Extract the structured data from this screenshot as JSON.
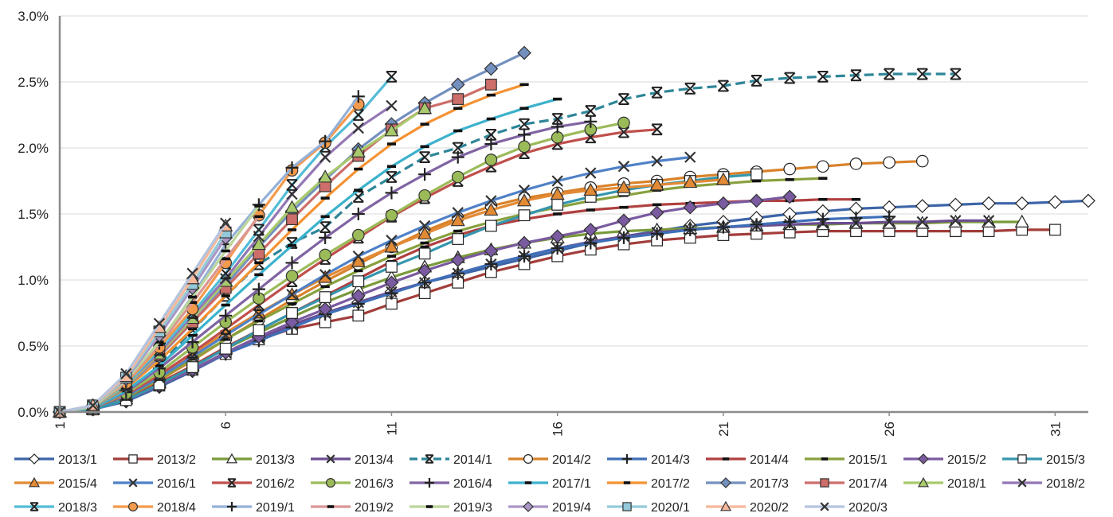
{
  "chart_data": {
    "type": "line",
    "title": "",
    "xlabel": "",
    "ylabel": "",
    "xlim": [
      1,
      32
    ],
    "ylim": [
      0,
      0.03
    ],
    "x_ticks": [
      1,
      6,
      11,
      16,
      21,
      26,
      31
    ],
    "y_ticks": [
      0,
      0.005,
      0.01,
      0.015,
      0.02,
      0.025,
      0.03
    ],
    "x_tick_labels": [
      "1",
      "6",
      "11",
      "16",
      "21",
      "26",
      "31"
    ],
    "y_tick_labels": [
      "0.0%",
      "0.5%",
      "1.0%",
      "1.5%",
      "2.0%",
      "2.5%",
      "3.0%"
    ],
    "legend_position": "bottom",
    "grid": "horizontal",
    "series": [
      {
        "name": "2013/1",
        "color": "#3d65a8",
        "marker": "diamond-open",
        "dash": false,
        "values": [
          0,
          0.0002,
          0.0008,
          0.0019,
          0.0031,
          0.0044,
          0.0055,
          0.0065,
          0.0074,
          0.0083,
          0.0091,
          0.0098,
          0.0104,
          0.011,
          0.0116,
          0.0122,
          0.0128,
          0.0133,
          0.0137,
          0.0141,
          0.0144,
          0.0147,
          0.015,
          0.0152,
          0.0154,
          0.0155,
          0.0156,
          0.0157,
          0.0158,
          0.0158,
          0.0159,
          0.016
        ]
      },
      {
        "name": "2013/2",
        "color": "#a23d3a",
        "marker": "square-open",
        "dash": false,
        "values": [
          0,
          0.0002,
          0.001,
          0.002,
          0.0032,
          0.0044,
          0.0055,
          0.0063,
          0.0068,
          0.0073,
          0.0082,
          0.009,
          0.0098,
          0.0106,
          0.0112,
          0.0118,
          0.0123,
          0.0127,
          0.013,
          0.0132,
          0.0134,
          0.0135,
          0.0136,
          0.0137,
          0.0137,
          0.0137,
          0.0137,
          0.0137,
          0.0137,
          0.0138,
          0.0138
        ]
      },
      {
        "name": "2013/3",
        "color": "#7a9a3b",
        "marker": "triangle-open",
        "dash": false,
        "values": [
          0,
          0.0002,
          0.001,
          0.0022,
          0.0035,
          0.0048,
          0.006,
          0.0072,
          0.0083,
          0.0093,
          0.0102,
          0.011,
          0.0117,
          0.0123,
          0.0128,
          0.0132,
          0.0135,
          0.0137,
          0.0138,
          0.0139,
          0.014,
          0.0141,
          0.0142,
          0.0142,
          0.0143,
          0.0143,
          0.0143,
          0.0144,
          0.0144,
          0.0144
        ]
      },
      {
        "name": "2013/4",
        "color": "#6b4d92",
        "marker": "x",
        "dash": false,
        "values": [
          0,
          0.0002,
          0.0009,
          0.002,
          0.0032,
          0.0045,
          0.0056,
          0.0066,
          0.0075,
          0.0083,
          0.0091,
          0.0098,
          0.0105,
          0.0112,
          0.0118,
          0.0124,
          0.0129,
          0.0133,
          0.0136,
          0.0138,
          0.014,
          0.0141,
          0.0142,
          0.0143,
          0.0143,
          0.0144,
          0.0144,
          0.0145,
          0.0145
        ]
      },
      {
        "name": "2014/1",
        "color": "#2e8698",
        "marker": "asterisk",
        "dash": true,
        "values": [
          0,
          0.0003,
          0.0015,
          0.0035,
          0.0062,
          0.0088,
          0.0112,
          0.0128,
          0.014,
          0.0163,
          0.0178,
          0.0193,
          0.02,
          0.021,
          0.0218,
          0.0222,
          0.0228,
          0.0237,
          0.0242,
          0.0245,
          0.0247,
          0.0251,
          0.0253,
          0.0254,
          0.0255,
          0.0256,
          0.0256,
          0.0256
        ]
      },
      {
        "name": "2014/2",
        "color": "#d9822b",
        "marker": "circle-open",
        "dash": false,
        "values": [
          0,
          0.0002,
          0.0011,
          0.0024,
          0.0039,
          0.0055,
          0.007,
          0.0085,
          0.0099,
          0.0112,
          0.0125,
          0.0137,
          0.0147,
          0.0156,
          0.0162,
          0.0166,
          0.017,
          0.0173,
          0.0175,
          0.0178,
          0.018,
          0.0182,
          0.0184,
          0.0186,
          0.0188,
          0.0189,
          0.019
        ]
      },
      {
        "name": "2014/3",
        "color": "#3f6fb8",
        "marker": "plus",
        "dash": false,
        "values": [
          0,
          0.0002,
          0.0009,
          0.002,
          0.0032,
          0.0044,
          0.0054,
          0.0064,
          0.0074,
          0.0082,
          0.009,
          0.0098,
          0.0105,
          0.0112,
          0.0118,
          0.0124,
          0.0128,
          0.0132,
          0.0135,
          0.0138,
          0.014,
          0.0142,
          0.0144,
          0.0146,
          0.0147,
          0.0148
        ]
      },
      {
        "name": "2014/4",
        "color": "#b04040",
        "marker": "dash",
        "dash": false,
        "values": [
          0,
          0.0002,
          0.001,
          0.0022,
          0.0035,
          0.0049,
          0.0062,
          0.0075,
          0.0088,
          0.0101,
          0.0114,
          0.0125,
          0.0134,
          0.0141,
          0.0146,
          0.015,
          0.0153,
          0.0155,
          0.0157,
          0.0158,
          0.0159,
          0.016,
          0.016,
          0.0161,
          0.0161
        ]
      },
      {
        "name": "2015/1",
        "color": "#88a13e",
        "marker": "dash",
        "dash": false,
        "values": [
          0,
          0.0002,
          0.0011,
          0.0025,
          0.004,
          0.0055,
          0.0069,
          0.0082,
          0.0095,
          0.0107,
          0.0118,
          0.0128,
          0.0137,
          0.0144,
          0.015,
          0.0155,
          0.016,
          0.0164,
          0.0168,
          0.0171,
          0.0173,
          0.0175,
          0.0176,
          0.0177
        ]
      },
      {
        "name": "2015/2",
        "color": "#7a5aa0",
        "marker": "diamond",
        "dash": false,
        "values": [
          0,
          0.0002,
          0.0009,
          0.002,
          0.0032,
          0.0045,
          0.0057,
          0.0068,
          0.0078,
          0.0088,
          0.0098,
          0.0107,
          0.0115,
          0.0122,
          0.0128,
          0.0133,
          0.0138,
          0.0145,
          0.0151,
          0.0155,
          0.0158,
          0.016,
          0.0163
        ]
      },
      {
        "name": "2015/3",
        "color": "#3596ad",
        "marker": "square-open",
        "dash": false,
        "values": [
          0,
          0.0002,
          0.0009,
          0.0021,
          0.0034,
          0.0048,
          0.0062,
          0.0075,
          0.0087,
          0.0099,
          0.011,
          0.012,
          0.0131,
          0.0141,
          0.0149,
          0.0157,
          0.0163,
          0.0168,
          0.0172,
          0.0175,
          0.0178,
          0.018
        ]
      },
      {
        "name": "2015/4",
        "color": "#e38a35",
        "marker": "triangle",
        "dash": false,
        "values": [
          0,
          0.0003,
          0.0013,
          0.0028,
          0.0044,
          0.006,
          0.0075,
          0.0089,
          0.0102,
          0.0114,
          0.0125,
          0.0135,
          0.0145,
          0.0153,
          0.016,
          0.0165,
          0.0168,
          0.017,
          0.0172,
          0.0174,
          0.0176
        ]
      },
      {
        "name": "2016/1",
        "color": "#4f81c7",
        "marker": "x",
        "dash": false,
        "values": [
          0,
          0.0003,
          0.0012,
          0.0026,
          0.0042,
          0.0058,
          0.0074,
          0.0089,
          0.0104,
          0.0118,
          0.013,
          0.0141,
          0.0151,
          0.016,
          0.0168,
          0.0175,
          0.0181,
          0.0186,
          0.019,
          0.0193
        ]
      },
      {
        "name": "2016/2",
        "color": "#c0504d",
        "marker": "asterisk",
        "dash": false,
        "values": [
          0,
          0.0003,
          0.0013,
          0.0028,
          0.0045,
          0.0063,
          0.0081,
          0.0099,
          0.0116,
          0.0132,
          0.0148,
          0.0162,
          0.0175,
          0.0186,
          0.0196,
          0.0203,
          0.0208,
          0.0212,
          0.0214
        ]
      },
      {
        "name": "2016/3",
        "color": "#9bbb59",
        "marker": "circle",
        "dash": false,
        "values": [
          0,
          0.0003,
          0.0014,
          0.003,
          0.0049,
          0.0068,
          0.0086,
          0.0103,
          0.0119,
          0.0134,
          0.0149,
          0.0164,
          0.0178,
          0.0191,
          0.0201,
          0.0208,
          0.0214,
          0.0219
        ]
      },
      {
        "name": "2016/4",
        "color": "#8064a2",
        "marker": "plus",
        "dash": false,
        "values": [
          0,
          0.0003,
          0.0015,
          0.0033,
          0.0053,
          0.0073,
          0.0093,
          0.0113,
          0.0132,
          0.015,
          0.0166,
          0.018,
          0.0193,
          0.0203,
          0.021,
          0.0216,
          0.022
        ]
      },
      {
        "name": "2017/1",
        "color": "#3cb2cc",
        "marker": "dash",
        "dash": false,
        "values": [
          0,
          0.0003,
          0.0016,
          0.0035,
          0.0058,
          0.0081,
          0.0104,
          0.0126,
          0.0148,
          0.0168,
          0.0186,
          0.0201,
          0.0213,
          0.0222,
          0.023,
          0.0237
        ]
      },
      {
        "name": "2017/2",
        "color": "#f59233",
        "marker": "dash",
        "dash": false,
        "values": [
          0,
          0.0004,
          0.0018,
          0.0039,
          0.0063,
          0.0088,
          0.0113,
          0.0138,
          0.0162,
          0.0184,
          0.0203,
          0.0218,
          0.023,
          0.024,
          0.0248
        ]
      },
      {
        "name": "2017/3",
        "color": "#7390bf",
        "marker": "diamond",
        "dash": false,
        "values": [
          0,
          0.0004,
          0.0019,
          0.0042,
          0.0068,
          0.0096,
          0.0125,
          0.0152,
          0.0176,
          0.0199,
          0.0218,
          0.0234,
          0.0248,
          0.026,
          0.0272
        ]
      },
      {
        "name": "2017/4",
        "color": "#cd6e6a",
        "marker": "square",
        "dash": false,
        "values": [
          0,
          0.0004,
          0.002,
          0.0043,
          0.0068,
          0.0094,
          0.012,
          0.0146,
          0.0171,
          0.0194,
          0.0214,
          0.023,
          0.0237,
          0.0248
        ]
      },
      {
        "name": "2018/1",
        "color": "#a8c96c",
        "marker": "triangle",
        "dash": false,
        "values": [
          0,
          0.0004,
          0.002,
          0.0044,
          0.0071,
          0.0099,
          0.0127,
          0.0155,
          0.0178,
          0.0197,
          0.0213,
          0.023
        ]
      },
      {
        "name": "2018/2",
        "color": "#9378b4",
        "marker": "x",
        "dash": false,
        "values": [
          0,
          0.0004,
          0.0021,
          0.0045,
          0.0073,
          0.0101,
          0.0133,
          0.0165,
          0.0193,
          0.0215,
          0.0232
        ]
      },
      {
        "name": "2018/3",
        "color": "#53bcd6",
        "marker": "asterisk",
        "dash": false,
        "values": [
          0,
          0.0004,
          0.0021,
          0.0047,
          0.0075,
          0.0105,
          0.0138,
          0.0172,
          0.0201,
          0.0225,
          0.0254
        ]
      },
      {
        "name": "2018/4",
        "color": "#f39a4c",
        "marker": "circle",
        "dash": false,
        "values": [
          0,
          0.0004,
          0.0022,
          0.0049,
          0.0078,
          0.0113,
          0.0149,
          0.0183,
          0.0204,
          0.0233
        ]
      },
      {
        "name": "2019/1",
        "color": "#95b1d9",
        "marker": "plus",
        "dash": false,
        "values": [
          0,
          0.0004,
          0.0023,
          0.0052,
          0.0088,
          0.0127,
          0.0157,
          0.0185,
          0.0205,
          0.0239
        ]
      },
      {
        "name": "2019/2",
        "color": "#d99693",
        "marker": "dash",
        "dash": false,
        "values": [
          0,
          0.0004,
          0.0023,
          0.0051,
          0.0083,
          0.0116,
          0.0148
        ]
      },
      {
        "name": "2019/3",
        "color": "#bcd69a",
        "marker": "dash",
        "dash": false,
        "values": [
          0,
          0.0004,
          0.0024,
          0.0053,
          0.0087,
          0.0122,
          0.0156
        ]
      },
      {
        "name": "2019/4",
        "color": "#a996c6",
        "marker": "diamond",
        "dash": false,
        "values": [
          0,
          0.0005,
          0.0025,
          0.0058,
          0.0094,
          0.0132
        ]
      },
      {
        "name": "2020/1",
        "color": "#93c9d9",
        "marker": "square",
        "dash": false,
        "values": [
          0,
          0.0005,
          0.0026,
          0.0061,
          0.0097,
          0.0136
        ]
      },
      {
        "name": "2020/2",
        "color": "#f5b89a",
        "marker": "triangle",
        "dash": false,
        "values": [
          0,
          0.0005,
          0.0027,
          0.0064,
          0.0101,
          0.0141
        ]
      },
      {
        "name": "2020/3",
        "color": "#b5c3de",
        "marker": "x",
        "dash": false,
        "values": [
          0,
          0.0005,
          0.0029,
          0.0067,
          0.0105,
          0.0143
        ]
      }
    ]
  }
}
